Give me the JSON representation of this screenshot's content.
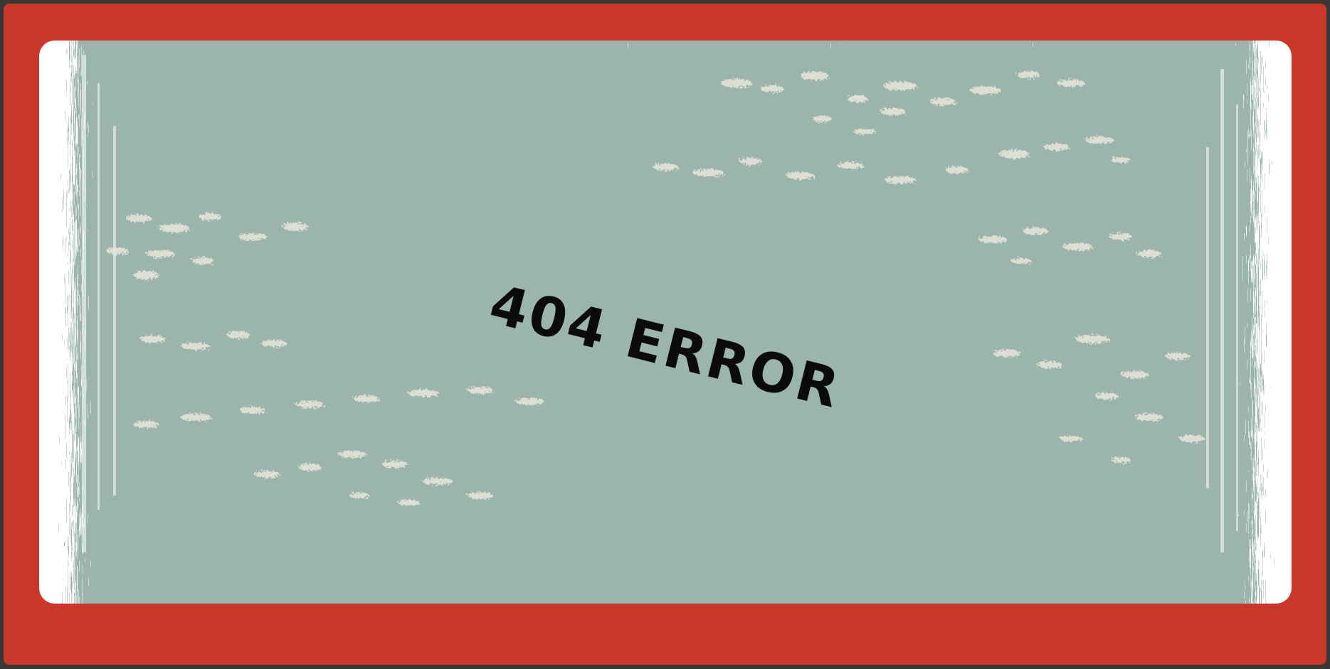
{
  "page": {
    "error_message": "404 ERROR"
  },
  "colors": {
    "frame": "#c8372a",
    "card": "#ffffff",
    "paint": "#9bb5ac",
    "speckle": "#e6e4d9",
    "text": "#0b0b0b",
    "outer": "#3a3835"
  },
  "decor": {
    "texture": "grunge-paint-brush"
  }
}
